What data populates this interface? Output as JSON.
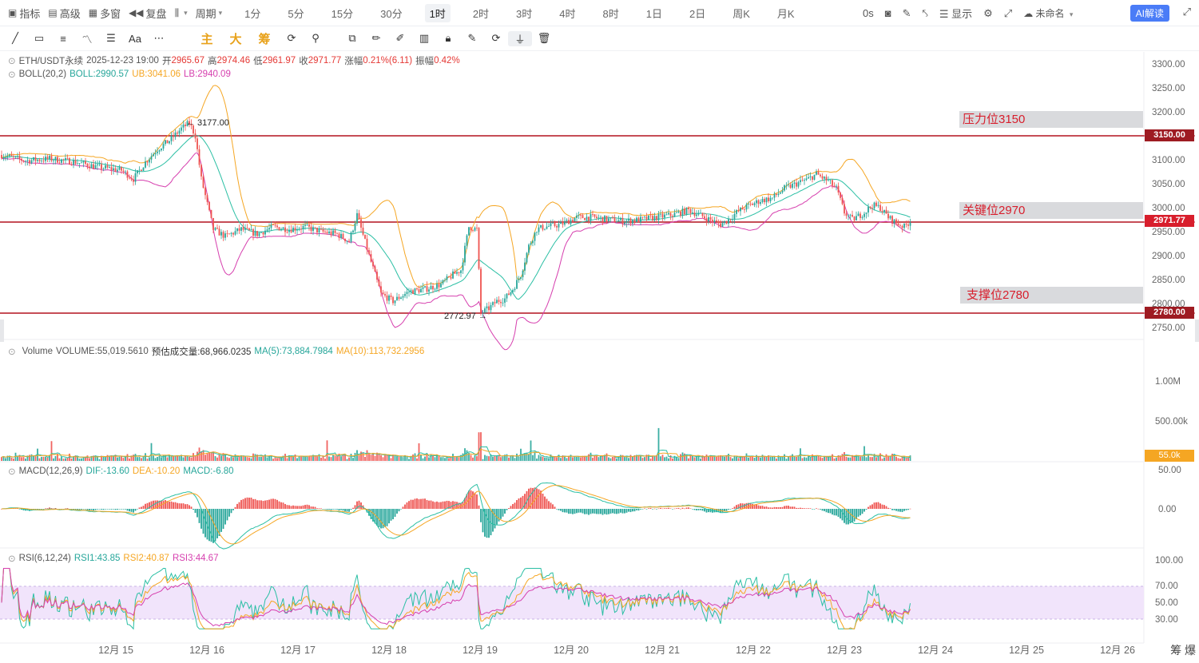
{
  "topbar": {
    "indicators": "指标",
    "advanced": "高级",
    "multi_window": "多窗",
    "replay": "复盘",
    "period": "周期",
    "timeframes": [
      "1分",
      "5分",
      "15分",
      "30分",
      "1时",
      "2时",
      "3时",
      "4时",
      "8时",
      "1日",
      "2日",
      "周K",
      "月K"
    ],
    "active_timeframe": "1时",
    "countdown": "0s",
    "display": "显示",
    "layout_name": "未命名",
    "ai": "AI解读"
  },
  "drawing_tools": {
    "labels": [
      "主",
      "大",
      "筹"
    ]
  },
  "symbol": "ETH/USDT永续",
  "ohlc": {
    "time": "2025-12-23 19:00",
    "open_label": "开",
    "open": "2965.67",
    "high_label": "高",
    "high": "2974.46",
    "low_label": "低",
    "low": "2961.97",
    "close_label": "收",
    "close": "2971.77",
    "change_label": "涨幅",
    "change": "0.21%(6.11)",
    "amplitude_label": "振幅",
    "amplitude": "0.42%"
  },
  "boll": {
    "name": "BOLL(20,2)",
    "mid": "BOLL:2990.57",
    "ub": "UB:3041.06",
    "lb": "LB:2940.09"
  },
  "volume": {
    "name": "Volume",
    "value": "VOLUME:55,019.5610",
    "est": "预估成交量:68,966.0235",
    "ma5": "MA(5):73,884.7984",
    "ma10": "MA(10):113,732.2956",
    "ticks": [
      "1.00M",
      "500.00k"
    ],
    "last_tag": "55.0k"
  },
  "macd": {
    "name": "MACD(12,26,9)",
    "dif": "DIF:-13.60",
    "dea": "DEA:-10.20",
    "macd": "MACD:-6.80",
    "ticks": [
      "50.00",
      "0.00"
    ]
  },
  "rsi": {
    "name": "RSI(6,12,24)",
    "rsi1": "RSI1:43.85",
    "rsi2": "RSI2:40.87",
    "rsi3": "RSI3:44.67",
    "ticks": [
      "100.00",
      "70.00",
      "50.00",
      "30.00"
    ]
  },
  "levels": [
    {
      "label": "压力位3150",
      "price": 3150,
      "tag": "3150.00"
    },
    {
      "label": "关键位2970",
      "price": 2970,
      "tag": "2971.77"
    },
    {
      "label": "支撑位2780",
      "price": 2780,
      "tag": "2780.00"
    }
  ],
  "colors": {
    "up": "#26a69a",
    "down": "#ef5350",
    "level": "#b3121f",
    "boll_mid": "#2bbfa4",
    "boll_ub": "#f5a623",
    "boll_lb": "#d63fae",
    "rsi_band": "#f1e4fb",
    "price_tag": "#d81e2c",
    "vol_tag": "#f5a623"
  },
  "chart_data": {
    "type": "candlestick",
    "symbol": "ETH/USDT永续",
    "interval": "1h",
    "x_axis_labels": [
      "12月 15",
      "12月 16",
      "12月 17",
      "12月 18",
      "12月 19",
      "12月 20",
      "12月 21",
      "12月 22",
      "12月 23",
      "12月 24",
      "12月 25",
      "12月 26"
    ],
    "price_ticks": [
      3300,
      3250,
      3200,
      3150,
      3100,
      3050,
      3000,
      2950,
      2900,
      2850,
      2800,
      2750
    ],
    "ylim": [
      2740,
      3315
    ],
    "annotations": [
      {
        "text": "← 3177.00",
        "price": 3177
      },
      {
        "text": "2772.97 →",
        "price": 2772.97
      }
    ],
    "price_path": [
      [
        0,
        3110
      ],
      [
        12,
        3098
      ],
      [
        24,
        3102
      ],
      [
        36,
        3096
      ],
      [
        48,
        3085
      ],
      [
        60,
        3078
      ],
      [
        66,
        3060
      ],
      [
        72,
        3095
      ],
      [
        78,
        3122
      ],
      [
        84,
        3140
      ],
      [
        90,
        3165
      ],
      [
        94,
        3177
      ],
      [
        97,
        3150
      ],
      [
        100,
        3060
      ],
      [
        106,
        2955
      ],
      [
        112,
        2940
      ],
      [
        120,
        2955
      ],
      [
        128,
        2945
      ],
      [
        136,
        2960
      ],
      [
        144,
        2955
      ],
      [
        152,
        2960
      ],
      [
        160,
        2950
      ],
      [
        168,
        2945
      ],
      [
        174,
        2930
      ],
      [
        178,
        2985
      ],
      [
        184,
        2900
      ],
      [
        190,
        2820
      ],
      [
        196,
        2805
      ],
      [
        204,
        2825
      ],
      [
        212,
        2830
      ],
      [
        220,
        2840
      ],
      [
        226,
        2860
      ],
      [
        230,
        2870
      ],
      [
        234,
        2960
      ],
      [
        238,
        2955
      ],
      [
        240,
        2780
      ],
      [
        244,
        2790
      ],
      [
        248,
        2805
      ],
      [
        252,
        2810
      ],
      [
        256,
        2830
      ],
      [
        260,
        2860
      ],
      [
        264,
        2920
      ],
      [
        268,
        2955
      ],
      [
        272,
        2960
      ],
      [
        280,
        2965
      ],
      [
        288,
        2980
      ],
      [
        296,
        2980
      ],
      [
        304,
        2975
      ],
      [
        312,
        2972
      ],
      [
        320,
        2975
      ],
      [
        328,
        2980
      ],
      [
        336,
        2985
      ],
      [
        344,
        2995
      ],
      [
        352,
        2980
      ],
      [
        360,
        2965
      ],
      [
        364,
        2975
      ],
      [
        368,
        2990
      ],
      [
        372,
        3000
      ],
      [
        380,
        3015
      ],
      [
        386,
        3020
      ],
      [
        392,
        3040
      ],
      [
        398,
        3050
      ],
      [
        404,
        3060
      ],
      [
        408,
        3070
      ],
      [
        414,
        3055
      ],
      [
        418,
        3040
      ],
      [
        422,
        2990
      ],
      [
        426,
        2975
      ],
      [
        432,
        2990
      ],
      [
        436,
        3005
      ],
      [
        440,
        3000
      ],
      [
        444,
        2980
      ],
      [
        448,
        2968
      ],
      [
        452,
        2960
      ],
      [
        455,
        2972
      ]
    ]
  }
}
